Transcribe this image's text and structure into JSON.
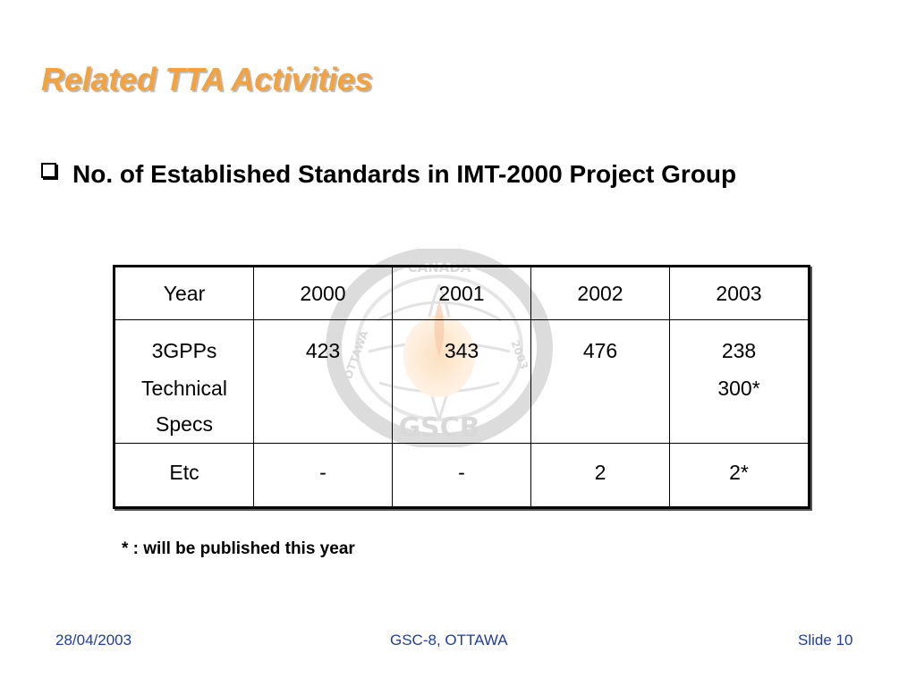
{
  "slide": {
    "title": "Related TTA Activities",
    "bullet": "No. of Established Standards in IMT-2000 Project Group",
    "table": {
      "header": [
        "Year",
        "2000",
        "2001",
        "2002",
        "2003"
      ],
      "rows": [
        {
          "label_lines": [
            "3GPPs",
            "Technical",
            "Specs"
          ],
          "values": [
            [
              "423"
            ],
            [
              "343"
            ],
            [
              "476"
            ],
            [
              "238",
              "300*"
            ]
          ]
        },
        {
          "label_lines": [
            "Etc"
          ],
          "values": [
            [
              "-"
            ],
            [
              "-"
            ],
            [
              "2"
            ],
            [
              "2*"
            ]
          ]
        }
      ]
    },
    "footnote": "* : will be published this year",
    "watermark_text": [
      "OTTAWA",
      "CANADA",
      "2003",
      "GSCB"
    ]
  },
  "footer": {
    "date": "28/04/2003",
    "event": "GSC-8, OTTAWA",
    "slide_number": "Slide 10"
  },
  "colors": {
    "title": "#f5a13c",
    "footer": "#1f3da0"
  }
}
